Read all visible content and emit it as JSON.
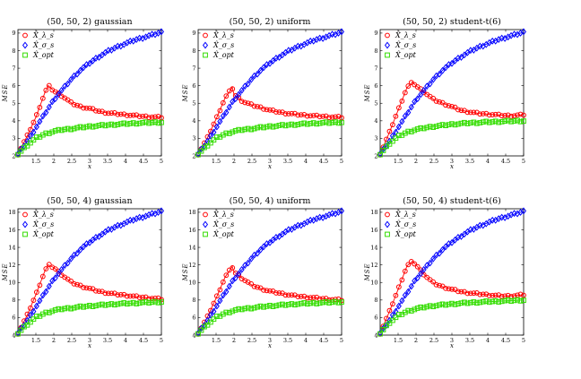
{
  "chart_data": [
    {
      "type": "line",
      "title": "(50, 50, 2) gaussian",
      "xlabel": "x",
      "ylabel": "MSE",
      "xlim": [
        1,
        5
      ],
      "ylim": [
        2,
        9.2
      ],
      "xticks": [
        1.5,
        2,
        2.5,
        3,
        3.5,
        4,
        4.5,
        5
      ],
      "yticks": [
        2,
        3,
        4,
        5,
        6,
        7,
        8,
        9
      ],
      "series": [
        {
          "name": "X̂_λs",
          "legend": "X̂_λ_s",
          "color": "#ff0000",
          "marker": "circle",
          "x": [
            1,
            1.25,
            1.5,
            1.75,
            1.85,
            2,
            2.25,
            2.5,
            2.75,
            3,
            3.25,
            3.5,
            3.75,
            4,
            4.25,
            4.5,
            4.75,
            5
          ],
          "y": [
            2.1,
            3.1,
            4.2,
            5.6,
            6.0,
            5.7,
            5.4,
            5.0,
            4.8,
            4.7,
            4.55,
            4.45,
            4.4,
            4.35,
            4.3,
            4.25,
            4.22,
            4.2
          ]
        },
        {
          "name": "X̂_σs",
          "legend": "X̂_σ_s",
          "color": "#0000ff",
          "marker": "diamond",
          "x": [
            1,
            1.25,
            1.5,
            1.75,
            2,
            2.25,
            2.5,
            2.75,
            3,
            3.25,
            3.5,
            3.75,
            4,
            4.25,
            4.5,
            4.75,
            5
          ],
          "y": [
            2.1,
            2.8,
            3.6,
            4.4,
            5.2,
            5.8,
            6.4,
            6.9,
            7.3,
            7.65,
            7.95,
            8.2,
            8.4,
            8.6,
            8.75,
            8.9,
            9.05
          ]
        },
        {
          "name": "X̂_opt",
          "legend": "X̂_opt",
          "color": "#33dd00",
          "marker": "square",
          "x": [
            1,
            1.25,
            1.5,
            1.75,
            2,
            2.25,
            2.5,
            2.75,
            3,
            3.25,
            3.5,
            3.75,
            4,
            4.25,
            4.5,
            4.75,
            5
          ],
          "y": [
            2.1,
            2.6,
            3.0,
            3.25,
            3.4,
            3.5,
            3.55,
            3.62,
            3.68,
            3.72,
            3.76,
            3.8,
            3.83,
            3.86,
            3.88,
            3.9,
            3.92
          ]
        }
      ]
    },
    {
      "type": "line",
      "title": "(50, 50, 2) uniform",
      "xlabel": "x",
      "ylabel": "MSE",
      "xlim": [
        1,
        5
      ],
      "ylim": [
        2,
        9.2
      ],
      "xticks": [
        1.5,
        2,
        2.5,
        3,
        3.5,
        4,
        4.5,
        5
      ],
      "yticks": [
        2,
        3,
        4,
        5,
        6,
        7,
        8,
        9
      ],
      "series": [
        {
          "name": "X̂_λs",
          "legend": "X̂_λ_s",
          "color": "#ff0000",
          "marker": "circle",
          "x": [
            1,
            1.25,
            1.5,
            1.75,
            1.95,
            2,
            2.25,
            2.5,
            2.75,
            3,
            3.25,
            3.5,
            3.75,
            4,
            4.25,
            4.5,
            4.75,
            5
          ],
          "y": [
            2.1,
            3.0,
            4.1,
            5.3,
            5.9,
            5.5,
            5.1,
            4.9,
            4.75,
            4.6,
            4.5,
            4.42,
            4.36,
            4.32,
            4.28,
            4.25,
            4.22,
            4.2
          ]
        },
        {
          "name": "X̂_σs",
          "legend": "X̂_σ_s",
          "color": "#0000ff",
          "marker": "diamond",
          "x": [
            1,
            1.25,
            1.5,
            1.75,
            2,
            2.25,
            2.5,
            2.75,
            3,
            3.25,
            3.5,
            3.75,
            4,
            4.25,
            4.5,
            4.75,
            5
          ],
          "y": [
            2.1,
            2.8,
            3.6,
            4.4,
            5.2,
            5.8,
            6.4,
            6.9,
            7.3,
            7.65,
            7.95,
            8.2,
            8.4,
            8.6,
            8.75,
            8.9,
            9.05
          ]
        },
        {
          "name": "X̂_opt",
          "legend": "X̂_opt",
          "color": "#33dd00",
          "marker": "square",
          "x": [
            1,
            1.25,
            1.5,
            1.75,
            2,
            2.25,
            2.5,
            2.75,
            3,
            3.25,
            3.5,
            3.75,
            4,
            4.25,
            4.5,
            4.75,
            5
          ],
          "y": [
            2.1,
            2.6,
            3.0,
            3.25,
            3.4,
            3.5,
            3.55,
            3.62,
            3.68,
            3.72,
            3.76,
            3.8,
            3.83,
            3.86,
            3.88,
            3.9,
            3.92
          ]
        }
      ]
    },
    {
      "type": "line",
      "title": "(50, 50, 2) student-t(6)",
      "xlabel": "x",
      "ylabel": "MSE",
      "xlim": [
        1,
        5
      ],
      "ylim": [
        2,
        9.2
      ],
      "xticks": [
        1.5,
        2,
        2.5,
        3,
        3.5,
        4,
        4.5,
        5
      ],
      "yticks": [
        2,
        3,
        4,
        5,
        6,
        7,
        8,
        9
      ],
      "series": [
        {
          "name": "X̂_λs",
          "legend": "X̂_λ_s",
          "color": "#ff0000",
          "marker": "circle",
          "x": [
            1,
            1.25,
            1.5,
            1.75,
            1.9,
            2,
            2.25,
            2.5,
            2.75,
            3,
            3.25,
            3.5,
            3.75,
            4,
            4.25,
            4.5,
            4.75,
            5
          ],
          "y": [
            2.1,
            3.3,
            4.6,
            5.9,
            6.2,
            6.0,
            5.6,
            5.2,
            5.0,
            4.8,
            4.6,
            4.5,
            4.42,
            4.38,
            4.34,
            4.3,
            4.3,
            4.35
          ]
        },
        {
          "name": "X̂_σs",
          "legend": "X̂_σ_s",
          "color": "#0000ff",
          "marker": "diamond",
          "x": [
            1,
            1.25,
            1.5,
            1.75,
            2,
            2.25,
            2.5,
            2.75,
            3,
            3.25,
            3.5,
            3.75,
            4,
            4.25,
            4.5,
            4.75,
            5
          ],
          "y": [
            2.1,
            2.8,
            3.6,
            4.4,
            5.2,
            5.8,
            6.4,
            6.9,
            7.3,
            7.65,
            7.95,
            8.2,
            8.4,
            8.6,
            8.75,
            8.9,
            9.05
          ]
        },
        {
          "name": "X̂_opt",
          "legend": "X̂_opt",
          "color": "#33dd00",
          "marker": "square",
          "x": [
            1,
            1.25,
            1.5,
            1.75,
            2,
            2.25,
            2.5,
            2.75,
            3,
            3.25,
            3.5,
            3.75,
            4,
            4.25,
            4.5,
            4.75,
            5
          ],
          "y": [
            2.1,
            2.7,
            3.1,
            3.35,
            3.5,
            3.6,
            3.68,
            3.74,
            3.8,
            3.84,
            3.88,
            3.9,
            3.93,
            3.95,
            3.97,
            3.99,
            4.0
          ]
        }
      ]
    },
    {
      "type": "line",
      "title": "(50, 50, 4) gaussian",
      "xlabel": "x",
      "ylabel": "MSE",
      "xlim": [
        1,
        5
      ],
      "ylim": [
        4,
        18.4
      ],
      "xticks": [
        1.5,
        2,
        2.5,
        3,
        3.5,
        4,
        4.5,
        5
      ],
      "yticks": [
        4,
        6,
        8,
        10,
        12,
        14,
        16,
        18
      ],
      "series": [
        {
          "name": "X̂_λs",
          "legend": "X̂_λ_s",
          "color": "#ff0000",
          "marker": "circle",
          "x": [
            1,
            1.25,
            1.5,
            1.75,
            1.85,
            2,
            2.25,
            2.5,
            2.75,
            3,
            3.25,
            3.5,
            3.75,
            4,
            4.25,
            4.5,
            4.75,
            5
          ],
          "y": [
            4.2,
            6.2,
            8.6,
            11.3,
            12.0,
            11.7,
            10.8,
            10.0,
            9.6,
            9.3,
            9.0,
            8.8,
            8.65,
            8.55,
            8.4,
            8.3,
            8.2,
            8.1
          ]
        },
        {
          "name": "X̂_σs",
          "legend": "X̂_σ_s",
          "color": "#0000ff",
          "marker": "diamond",
          "x": [
            1,
            1.25,
            1.5,
            1.75,
            2,
            2.25,
            2.5,
            2.75,
            3,
            3.25,
            3.5,
            3.75,
            4,
            4.25,
            4.5,
            4.75,
            5
          ],
          "y": [
            4.2,
            5.6,
            7.2,
            8.8,
            10.4,
            11.6,
            12.8,
            13.8,
            14.6,
            15.3,
            15.9,
            16.4,
            16.8,
            17.2,
            17.5,
            17.8,
            18.1
          ]
        },
        {
          "name": "X̂_opt",
          "legend": "X̂_opt",
          "color": "#33dd00",
          "marker": "square",
          "x": [
            1,
            1.25,
            1.5,
            1.75,
            2,
            2.25,
            2.5,
            2.75,
            3,
            3.25,
            3.5,
            3.75,
            4,
            4.25,
            4.5,
            4.75,
            5
          ],
          "y": [
            4.2,
            5.2,
            6.0,
            6.5,
            6.8,
            7.0,
            7.1,
            7.22,
            7.32,
            7.4,
            7.48,
            7.55,
            7.6,
            7.65,
            7.7,
            7.75,
            7.8
          ]
        }
      ]
    },
    {
      "type": "line",
      "title": "(50, 50, 4) uniform",
      "xlabel": "x",
      "ylabel": "MSE",
      "xlim": [
        1,
        5
      ],
      "ylim": [
        4,
        18.4
      ],
      "xticks": [
        1.5,
        2,
        2.5,
        3,
        3.5,
        4,
        4.5,
        5
      ],
      "yticks": [
        4,
        6,
        8,
        10,
        12,
        14,
        16,
        18
      ],
      "series": [
        {
          "name": "X̂_λs",
          "legend": "X̂_λ_s",
          "color": "#ff0000",
          "marker": "circle",
          "x": [
            1,
            1.25,
            1.5,
            1.75,
            1.95,
            2,
            2.25,
            2.5,
            2.75,
            3,
            3.25,
            3.5,
            3.75,
            4,
            4.25,
            4.5,
            4.75,
            5
          ],
          "y": [
            4.2,
            6.0,
            8.2,
            10.6,
            11.8,
            11.2,
            10.4,
            9.7,
            9.3,
            9.0,
            8.8,
            8.6,
            8.45,
            8.35,
            8.25,
            8.15,
            8.05,
            8.0
          ]
        },
        {
          "name": "X̂_σs",
          "legend": "X̂_σ_s",
          "color": "#0000ff",
          "marker": "diamond",
          "x": [
            1,
            1.25,
            1.5,
            1.75,
            2,
            2.25,
            2.5,
            2.75,
            3,
            3.25,
            3.5,
            3.75,
            4,
            4.25,
            4.5,
            4.75,
            5
          ],
          "y": [
            4.2,
            5.6,
            7.2,
            8.8,
            10.4,
            11.6,
            12.8,
            13.8,
            14.6,
            15.3,
            15.9,
            16.4,
            16.8,
            17.2,
            17.5,
            17.8,
            18.1
          ]
        },
        {
          "name": "X̂_opt",
          "legend": "X̂_opt",
          "color": "#33dd00",
          "marker": "square",
          "x": [
            1,
            1.25,
            1.5,
            1.75,
            2,
            2.25,
            2.5,
            2.75,
            3,
            3.25,
            3.5,
            3.75,
            4,
            4.25,
            4.5,
            4.75,
            5
          ],
          "y": [
            4.2,
            5.2,
            6.0,
            6.5,
            6.8,
            7.0,
            7.1,
            7.22,
            7.32,
            7.4,
            7.48,
            7.55,
            7.6,
            7.65,
            7.7,
            7.75,
            7.8
          ]
        }
      ]
    },
    {
      "type": "line",
      "title": "(50, 50, 4) student-t(6)",
      "xlabel": "x",
      "ylabel": "MSE",
      "xlim": [
        1,
        5
      ],
      "ylim": [
        4,
        18.4
      ],
      "xticks": [
        1.5,
        2,
        2.5,
        3,
        3.5,
        4,
        4.5,
        5
      ],
      "yticks": [
        4,
        6,
        8,
        10,
        12,
        14,
        16,
        18
      ],
      "series": [
        {
          "name": "X̂_λs",
          "legend": "X̂_λ_s",
          "color": "#ff0000",
          "marker": "circle",
          "x": [
            1,
            1.25,
            1.5,
            1.75,
            1.9,
            2,
            2.25,
            2.5,
            2.75,
            3,
            3.25,
            3.5,
            3.75,
            4,
            4.25,
            4.5,
            4.75,
            5
          ],
          "y": [
            4.2,
            6.6,
            9.2,
            11.9,
            12.4,
            12.0,
            10.8,
            9.9,
            9.5,
            9.2,
            8.95,
            8.8,
            8.7,
            8.6,
            8.5,
            8.45,
            8.5,
            8.6
          ]
        },
        {
          "name": "X̂_σs",
          "legend": "X̂_σ_s",
          "color": "#0000ff",
          "marker": "diamond",
          "x": [
            1,
            1.25,
            1.5,
            1.75,
            2,
            2.25,
            2.5,
            2.75,
            3,
            3.25,
            3.5,
            3.75,
            4,
            4.25,
            4.5,
            4.75,
            5
          ],
          "y": [
            4.2,
            5.6,
            7.2,
            8.8,
            10.4,
            11.6,
            12.8,
            13.8,
            14.6,
            15.3,
            15.9,
            16.4,
            16.8,
            17.2,
            17.5,
            17.8,
            18.1
          ]
        },
        {
          "name": "X̂_opt",
          "legend": "X̂_opt",
          "color": "#33dd00",
          "marker": "square",
          "x": [
            1,
            1.25,
            1.5,
            1.75,
            2,
            2.25,
            2.5,
            2.75,
            3,
            3.25,
            3.5,
            3.75,
            4,
            4.25,
            4.5,
            4.75,
            5
          ],
          "y": [
            4.2,
            5.4,
            6.2,
            6.7,
            7.0,
            7.2,
            7.35,
            7.45,
            7.55,
            7.62,
            7.7,
            7.75,
            7.8,
            7.85,
            7.9,
            7.95,
            8.0
          ]
        }
      ]
    }
  ]
}
